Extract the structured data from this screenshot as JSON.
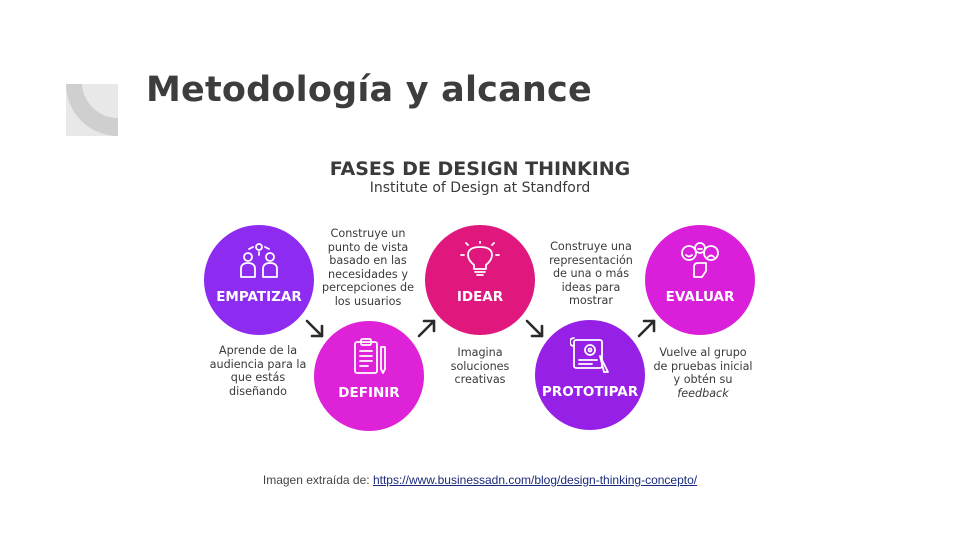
{
  "slide": {
    "title": "Metodología y alcance"
  },
  "figure": {
    "title": "FASES DE DESIGN THINKING",
    "subtitle": "Institute of Design at Standford",
    "phases": [
      {
        "label": "EMPATIZAR",
        "icon": "empathy-people-icon",
        "color": "#8e2bf0",
        "description": [
          "Aprende de la",
          "audiencia para la",
          "que estás",
          "diseñando"
        ]
      },
      {
        "label": "DEFINIR",
        "icon": "clipboard-pencil-icon",
        "color": "#dd22d8",
        "description": [
          "Construye un",
          "punto de vista",
          "basado en las",
          "necesidades y",
          "percepciones de",
          "los usuarios"
        ]
      },
      {
        "label": "IDEAR",
        "icon": "lightbulb-icon",
        "color": "#e0187e",
        "description": [
          "Imagina",
          "soluciones",
          "creativas"
        ]
      },
      {
        "label": "PROTOTIPAR",
        "icon": "blueprint-gear-icon",
        "color": "#9620e6",
        "description": [
          "Construye una",
          "representación",
          "de una o más",
          "ideas para",
          "mostrar"
        ]
      },
      {
        "label": "EVALUAR",
        "icon": "feedback-faces-icon",
        "color": "#d91fd9",
        "description": [
          "Vuelve al grupo",
          "de pruebas inicial",
          "y obtén su",
          "feedback"
        ]
      }
    ]
  },
  "credit": {
    "prefix": "Imagen extraída de: ",
    "link_text": "https://www.businessadn.com/blog/design-thinking-concepto/"
  },
  "colors": {
    "title": "#3d3d3d",
    "decor_gray": "#e4e4e4",
    "arrow": "#2a2a2a",
    "link": "#1a2a7a"
  }
}
